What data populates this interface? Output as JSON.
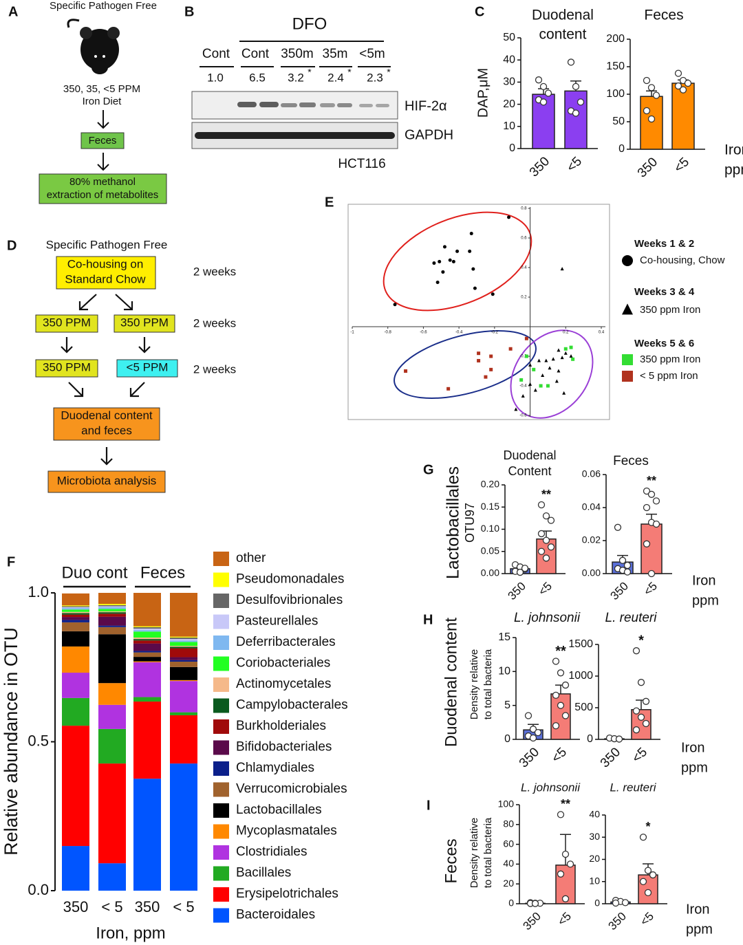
{
  "panel_labels": [
    "A",
    "B",
    "C",
    "D",
    "E",
    "F",
    "G",
    "H",
    "I"
  ],
  "diagram_a": {
    "header": "Specific Pathogen Free",
    "diet": [
      "350, 35, <5 PPM",
      "Iron Diet"
    ],
    "feces": "Feces",
    "extraction": [
      "80% methanol",
      "extraction of metabolites"
    ]
  },
  "blot_b": {
    "treatment": "DFO",
    "lanes": [
      "Cont",
      "Cont",
      "350m",
      "35m",
      "<5m"
    ],
    "ratios": [
      "1.0",
      "6.5",
      "3.2",
      "2.4",
      "2.3"
    ],
    "marks": [
      "*",
      "*",
      "*"
    ],
    "bands": [
      "HIF-2α",
      "GAPDH"
    ],
    "cell_line": "HCT116"
  },
  "diagram_d": {
    "header": "Specific Pathogen Free",
    "start": [
      "Co-housing on",
      "Standard Chow"
    ],
    "durations": [
      "2 weeks",
      "2 weeks",
      "2 weeks"
    ],
    "diet_left": [
      "350 PPM",
      "350 PPM"
    ],
    "diet_right": [
      "350 PPM",
      "<5 PPM"
    ],
    "sampling": [
      "Duodenal content",
      "and feces"
    ],
    "analysis": "Microbiota analysis"
  },
  "chart_data": [
    {
      "type": "bar",
      "title_lines": [
        "Duodenal",
        "content"
      ],
      "ylabel": "DAP,μM",
      "categories": [
        "350",
        "<5"
      ],
      "values": [
        24.5,
        26
      ],
      "errors": [
        2.5,
        4.5
      ],
      "points": [
        [
          31,
          28,
          25,
          22,
          21
        ],
        [
          39,
          28,
          21,
          17,
          16
        ]
      ],
      "colors": [
        "#8b3ff0",
        "#8b3ff0"
      ],
      "ylim": [
        0,
        50
      ],
      "yticks": [
        0,
        10,
        20,
        30,
        40,
        50
      ]
    },
    {
      "type": "bar",
      "title_lines": [
        "Feces"
      ],
      "xlabel_lines": [
        "Iron",
        "ppm"
      ],
      "categories": [
        "350",
        "<5"
      ],
      "values": [
        96,
        120
      ],
      "errors": [
        10,
        6
      ],
      "points": [
        [
          125,
          112,
          98,
          70,
          55
        ],
        [
          138,
          125,
          120,
          115,
          108
        ]
      ],
      "colors": [
        "#ff8a00",
        "#ff8a00"
      ],
      "ylim": [
        0,
        200
      ],
      "yticks": [
        0,
        50,
        100,
        150,
        200
      ]
    },
    {
      "type": "scatter",
      "legend_groups": [
        "Weeks 1 & 2",
        "Weeks 3 & 4",
        "Weeks 5 & 6"
      ],
      "xlim": [
        -1,
        0.4
      ],
      "ylim": [
        -0.6,
        0.8
      ],
      "xticks": [
        -1,
        -0.8,
        -0.6,
        -0.4,
        -0.2,
        0.2,
        0.4
      ],
      "yticks": [
        -0.6,
        -0.4,
        -0.2,
        0.2,
        0.4,
        0.6,
        0.8
      ],
      "series": [
        {
          "name": "Co-housing, Chow",
          "marker": "circle",
          "color": "#000000",
          "x": [
            -0.12,
            -0.33,
            -0.48,
            -0.34,
            -0.41,
            -0.45,
            -0.51,
            -0.54,
            -0.43,
            -0.49,
            -0.32,
            -0.52,
            -0.21,
            -0.31,
            -0.76
          ],
          "y": [
            0.74,
            0.63,
            0.54,
            0.51,
            0.51,
            0.45,
            0.44,
            0.43,
            0.44,
            0.37,
            0.39,
            0.3,
            0.22,
            0.26,
            0.15
          ]
        },
        {
          "name": "350 ppm Iron",
          "marker": "triangle",
          "color": "#000000",
          "x": [
            0.18,
            0.16,
            0.2,
            0.23,
            0.18,
            0.13,
            0.09,
            0.05,
            0,
            0.11,
            0.16,
            0.07,
            0.15,
            0,
            0.03,
            0.19,
            -0.04,
            -0.08
          ],
          "y": [
            0.39,
            -0.16,
            -0.18,
            -0.2,
            -0.21,
            -0.22,
            -0.23,
            -0.23,
            -0.26,
            -0.28,
            -0.3,
            -0.33,
            -0.37,
            -0.39,
            -0.43,
            -0.45,
            -0.47,
            -0.56
          ]
        },
        {
          "name": "350 ppm Iron",
          "marker": "square",
          "color": "#33dd33",
          "x": [
            0.23,
            0.2,
            0.24,
            0.02,
            -0.05,
            0.06,
            0.1,
            -0.02
          ],
          "y": [
            -0.14,
            -0.15,
            -0.22,
            -0.29,
            -0.36,
            -0.4,
            -0.4,
            -0.2
          ]
        },
        {
          "name": "< 5 ppm Iron",
          "marker": "square",
          "color": "#b0321e",
          "x": [
            -0.11,
            -0.22,
            -0.29,
            -0.29,
            -0.22,
            -0.25,
            -0.46,
            -0.7,
            -0.02
          ],
          "y": [
            -0.15,
            -0.2,
            -0.18,
            -0.23,
            -0.29,
            -0.34,
            -0.42,
            -0.3,
            -0.08
          ]
        }
      ]
    },
    {
      "type": "stacked_bar",
      "ylabel": "Relative abundance in OTU",
      "xlabel": "Iron, ppm",
      "group_labels": [
        "Duo cont",
        "Feces"
      ],
      "categories": [
        "350",
        "< 5",
        "350",
        "< 5"
      ],
      "ylim": [
        0,
        1
      ],
      "yticks": [
        {
          "value": 0,
          "label": "0.0"
        },
        {
          "value": 0.5,
          "label": "0.5"
        },
        {
          "value": 1,
          "label": "1.0"
        }
      ],
      "series": [
        {
          "name": "Bacteroidales",
          "color": "#0055ff",
          "values": [
            0.15,
            0.092,
            0.376,
            0.427
          ]
        },
        {
          "name": "Erysipelotrichales",
          "color": "#ff0000",
          "values": [
            0.404,
            0.335,
            0.259,
            0.162
          ]
        },
        {
          "name": "Bacillales",
          "color": "#22aa22",
          "values": [
            0.093,
            0.116,
            0.015,
            0.01
          ]
        },
        {
          "name": "Clostridiales",
          "color": "#b033e0",
          "values": [
            0.085,
            0.081,
            0.117,
            0.105
          ]
        },
        {
          "name": "Mycoplasmatales",
          "color": "#ff8800",
          "values": [
            0.088,
            0.073,
            0.003,
            0.003
          ]
        },
        {
          "name": "Lactobacillales",
          "color": "#000000",
          "values": [
            0.051,
            0.164,
            0.015,
            0.044
          ]
        },
        {
          "name": "Verrucomicrobiales",
          "color": "#a0622d",
          "values": [
            0.03,
            0.024,
            0.015,
            0.018
          ]
        },
        {
          "name": "Chlamydiales",
          "color": "#0b1f8a",
          "values": [
            0.008,
            0.005,
            0.005,
            0.005
          ]
        },
        {
          "name": "Bifidobacteriales",
          "color": "#5a0a4a",
          "values": [
            0.01,
            0.03,
            0.025,
            0.01
          ]
        },
        {
          "name": "Burkholderiales",
          "color": "#a00a0a",
          "values": [
            0.008,
            0.01,
            0.01,
            0.03
          ]
        },
        {
          "name": "Campylobacterales",
          "color": "#0a5a1e",
          "values": [
            0.005,
            0.005,
            0.005,
            0.005
          ]
        },
        {
          "name": "Actinomycetales",
          "color": "#f5b98a",
          "values": [
            0.004,
            0.003,
            0.005,
            0.003
          ]
        },
        {
          "name": "Coriobacteriales",
          "color": "#22ff22",
          "values": [
            0.008,
            0.008,
            0.02,
            0.013
          ]
        },
        {
          "name": "Deferribacterales",
          "color": "#7fb8f0",
          "values": [
            0.005,
            0.006,
            0.005,
            0.005
          ]
        },
        {
          "name": "Pasteurellales",
          "color": "#c8c8f8",
          "values": [
            0.003,
            0.003,
            0.005,
            0.005
          ]
        },
        {
          "name": "Desulfovibrionales",
          "color": "#666666",
          "values": [
            0.003,
            0.004,
            0.005,
            0.005
          ]
        },
        {
          "name": "Pseudomonadales",
          "color": "#ffff00",
          "values": [
            0.003,
            0.004,
            0.003,
            0.003
          ]
        },
        {
          "name": "other",
          "color": "#c86414",
          "values": [
            0.04,
            0.037,
            0.112,
            0.147
          ]
        }
      ]
    },
    {
      "type": "bar",
      "title_lines": [
        "Duodenal",
        "Content"
      ],
      "ylabel_lines": [
        "Lactobacillales",
        "OTU97"
      ],
      "stars": "**",
      "categories": [
        "350",
        "<5"
      ],
      "values": [
        0.011,
        0.078
      ],
      "errors": [
        0.005,
        0.018
      ],
      "points": [
        [
          0.02,
          0.015,
          0.01,
          0.005,
          0.003,
          0.012
        ],
        [
          0.155,
          0.13,
          0.12,
          0.09,
          0.075,
          0.06,
          0.05,
          0.035
        ]
      ],
      "colors": [
        "#5a6fd8",
        "#f47c76"
      ],
      "ylim": [
        0,
        0.2
      ],
      "yticks": [
        {
          "value": 0,
          "label": "0.00"
        },
        {
          "value": 0.05,
          "label": "0.05"
        },
        {
          "value": 0.1,
          "label": "0.10"
        },
        {
          "value": 0.15,
          "label": "0.15"
        },
        {
          "value": 0.2,
          "label": "0.20"
        }
      ]
    },
    {
      "type": "bar",
      "title_lines": [
        "Feces"
      ],
      "xlabel_lines": [
        "Iron",
        "ppm"
      ],
      "stars": "**",
      "categories": [
        "350",
        "<5"
      ],
      "values": [
        0.007,
        0.03
      ],
      "errors": [
        0.004,
        0.006
      ],
      "points": [
        [
          0.028,
          0.008,
          0.005,
          0.003,
          0.002,
          0.001
        ],
        [
          0.05,
          0.048,
          0.044,
          0.04,
          0.031,
          0.03,
          0.018,
          0
        ]
      ],
      "colors": [
        "#5a6fd8",
        "#f47c76"
      ],
      "ylim": [
        0,
        0.06
      ],
      "yticks": [
        {
          "value": 0,
          "label": "0.00"
        },
        {
          "value": 0.02,
          "label": "0.02"
        },
        {
          "value": 0.04,
          "label": "0.04"
        },
        {
          "value": 0.06,
          "label": "0.06"
        }
      ]
    },
    {
      "type": "bar",
      "title_lines": [
        "L. johnsonii"
      ],
      "group_label": "Duodenal content",
      "ylabel_lines": [
        "Density relative",
        "to total bacteria"
      ],
      "stars": "**",
      "categories": [
        "350",
        "<5"
      ],
      "values": [
        1.4,
        6.7
      ],
      "errors": [
        0.8,
        1.3
      ],
      "points": [
        [
          3.5,
          1.5,
          1,
          0.5,
          0.2
        ],
        [
          11.5,
          9.8,
          8,
          6.5,
          5,
          3.5,
          2
        ]
      ],
      "colors": [
        "#5a6fd8",
        "#f47c76"
      ],
      "ylim": [
        0,
        15
      ],
      "yticks": [
        0,
        5,
        10,
        15
      ]
    },
    {
      "type": "bar",
      "title_lines": [
        "L. reuteri"
      ],
      "xlabel_lines": [
        "Iron",
        "ppm"
      ],
      "stars": "*",
      "categories": [
        "350",
        "<5"
      ],
      "values": [
        10,
        470
      ],
      "errors": [
        5,
        150
      ],
      "points": [
        [
          20,
          10,
          5
        ],
        [
          1400,
          900,
          600,
          450,
          350,
          250,
          150
        ]
      ],
      "colors": [
        "#5a6fd8",
        "#f47c76"
      ],
      "ylim": [
        0,
        1500
      ],
      "yticks": [
        0,
        500,
        1000,
        1500
      ]
    },
    {
      "type": "bar",
      "title_lines": [
        "L. johnsonii"
      ],
      "group_label": "Feces",
      "ylabel_lines": [
        "Density relative",
        "to total bacteria"
      ],
      "stars": "**",
      "categories": [
        "350",
        "<5"
      ],
      "values": [
        0.5,
        39
      ],
      "errors": [
        0.3,
        31
      ],
      "points": [
        [
          1,
          0.5,
          0.5,
          0.3,
          0.2
        ],
        [
          90,
          50,
          40,
          30,
          5
        ]
      ],
      "colors": [
        "#5a6fd8",
        "#f47c76"
      ],
      "ylim": [
        0,
        100
      ],
      "yticks": [
        0,
        20,
        40,
        60,
        80,
        100
      ]
    },
    {
      "type": "bar",
      "title_lines": [
        "L. reuteri"
      ],
      "xlabel_lines": [
        "Iron",
        "ppm"
      ],
      "stars": "*",
      "categories": [
        "350",
        "<5"
      ],
      "values": [
        0.8,
        13
      ],
      "errors": [
        0.5,
        5
      ],
      "points": [
        [
          1.5,
          1,
          0.5,
          0.3
        ],
        [
          30,
          15,
          13,
          10,
          5
        ]
      ],
      "colors": [
        "#5a6fd8",
        "#f47c76"
      ],
      "ylim": [
        0,
        40
      ],
      "yticks": [
        0,
        10,
        20,
        30,
        40
      ]
    }
  ]
}
